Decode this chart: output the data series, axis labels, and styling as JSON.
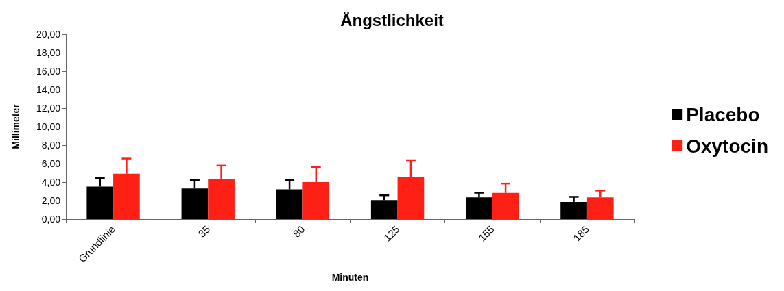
{
  "chart_data": {
    "type": "bar",
    "title": "Ängstlichkeit",
    "xlabel": "Minuten",
    "ylabel": "Millimeter",
    "categories": [
      "Grundlinie",
      "35",
      "80",
      "125",
      "155",
      "185"
    ],
    "series": [
      {
        "name": "Placebo",
        "color": "#000000",
        "values": [
          3.52,
          3.31,
          3.22,
          2.05,
          2.35,
          1.86
        ],
        "errors": [
          [
            3.52,
            4.44
          ],
          [
            3.31,
            4.23
          ],
          [
            3.22,
            4.23
          ],
          [
            2.05,
            2.58
          ],
          [
            2.35,
            2.85
          ],
          [
            1.86,
            2.41
          ]
        ]
      },
      {
        "name": "Oxytocin",
        "color": "#ff2015",
        "values": [
          4.9,
          4.3,
          4.0,
          4.58,
          2.83,
          2.35
        ],
        "errors": [
          [
            4.9,
            6.55
          ],
          [
            4.3,
            5.79
          ],
          [
            4.0,
            5.63
          ],
          [
            4.58,
            6.37
          ],
          [
            2.83,
            3.84
          ],
          [
            2.35,
            3.08
          ]
        ]
      }
    ],
    "ylim": [
      0,
      20
    ],
    "yticks": [
      {
        "value": 0,
        "label": "0,00"
      },
      {
        "value": 2,
        "label": "2,00"
      },
      {
        "value": 4,
        "label": "4,00"
      },
      {
        "value": 6,
        "label": "6,00"
      },
      {
        "value": 8,
        "label": "8,00"
      },
      {
        "value": 10,
        "label": "10,00"
      },
      {
        "value": 12,
        "label": "12,00"
      },
      {
        "value": 14,
        "label": "14,00"
      },
      {
        "value": 16,
        "label": "16,00"
      },
      {
        "value": 18,
        "label": "18,00"
      },
      {
        "value": 20,
        "label": "20,00"
      }
    ],
    "grid": false,
    "legend": "right"
  }
}
